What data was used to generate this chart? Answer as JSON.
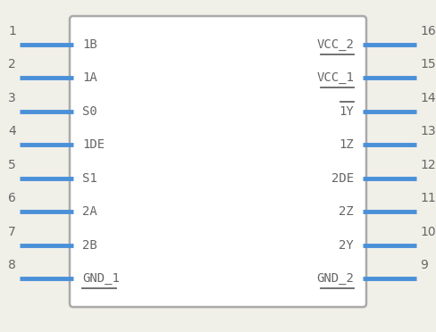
{
  "bg_color": "#f0efe8",
  "body_edge_color": "#aaaaaa",
  "pin_color": "#4a90d9",
  "text_color": "#666666",
  "left_pins": [
    {
      "num": 1,
      "label": "1B"
    },
    {
      "num": 2,
      "label": "1A"
    },
    {
      "num": 3,
      "label": "S0"
    },
    {
      "num": 4,
      "label": "1DE"
    },
    {
      "num": 5,
      "label": "S1"
    },
    {
      "num": 6,
      "label": "2A"
    },
    {
      "num": 7,
      "label": "2B"
    },
    {
      "num": 8,
      "label": "GND_1",
      "underbar": true
    }
  ],
  "right_pins": [
    {
      "num": 16,
      "label": "VCC_2",
      "underbar": true
    },
    {
      "num": 15,
      "label": "VCC_1",
      "underbar": true
    },
    {
      "num": 14,
      "label": "1Y",
      "overbar": true
    },
    {
      "num": 13,
      "label": "1Z"
    },
    {
      "num": 12,
      "label": "2DE"
    },
    {
      "num": 11,
      "label": "2Z"
    },
    {
      "num": 10,
      "label": "2Y"
    },
    {
      "num": 9,
      "label": "GND_2",
      "underbar": true
    }
  ],
  "figsize": [
    4.88,
    3.72
  ],
  "dpi": 100
}
